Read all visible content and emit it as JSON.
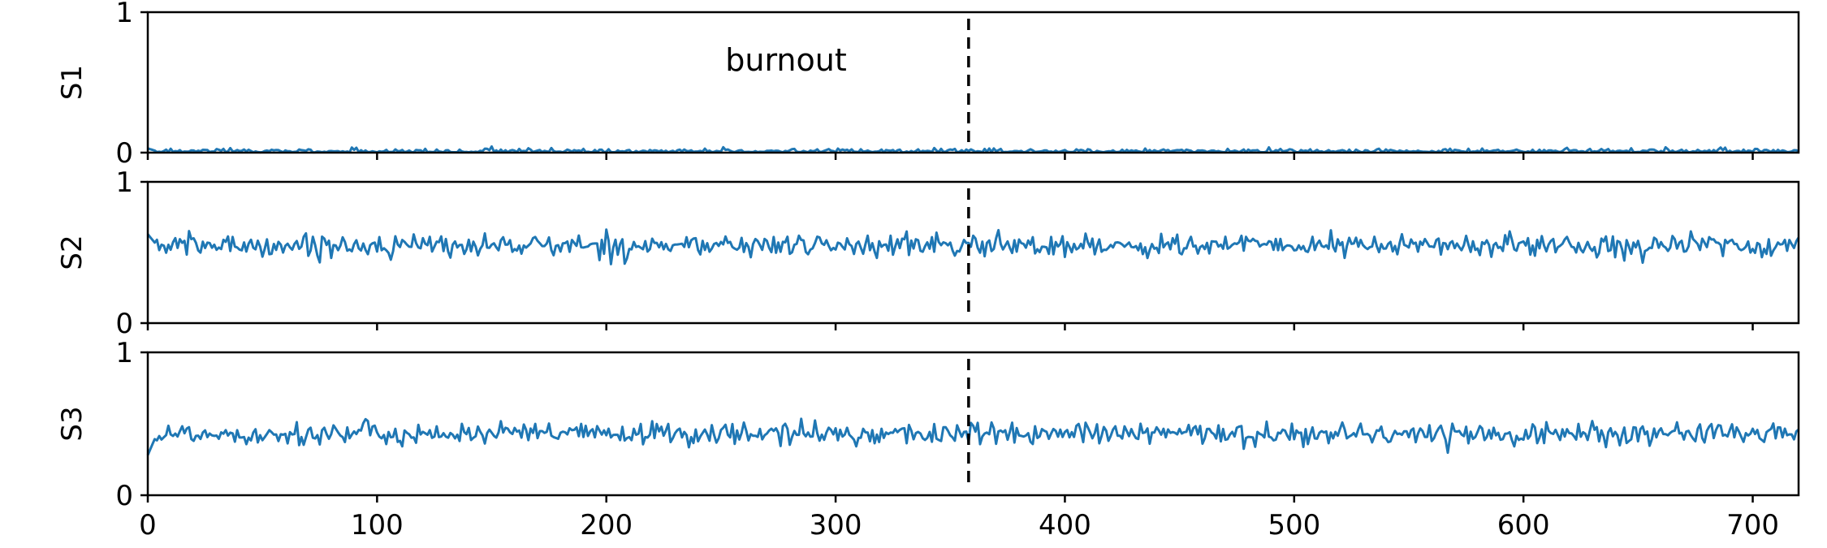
{
  "chart_data": {
    "type": "line",
    "x_range": [
      0,
      720
    ],
    "x_ticks": [
      0,
      100,
      200,
      300,
      400,
      500,
      600,
      700
    ],
    "y_ticks": [
      0,
      1
    ],
    "marker_x": 358,
    "annotation": "burnout",
    "series_color": "#1f77b4",
    "panels": [
      {
        "name": "S1",
        "ylim": [
          0,
          1
        ],
        "mean": 0.01,
        "spread": 0.012,
        "start": 0.03
      },
      {
        "name": "S2",
        "ylim": [
          0,
          1
        ],
        "mean": 0.55,
        "spread": 0.04,
        "start": 0.63
      },
      {
        "name": "S3",
        "ylim": [
          0,
          1
        ],
        "mean": 0.43,
        "spread": 0.04,
        "start": 0.28
      }
    ]
  }
}
